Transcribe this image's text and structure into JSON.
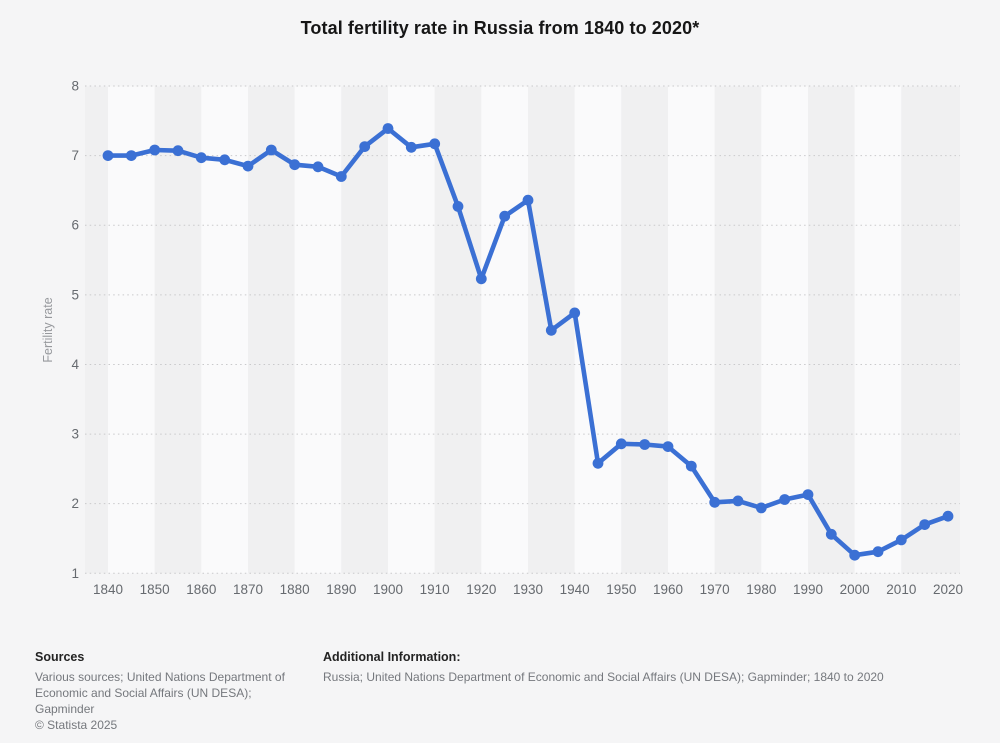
{
  "title": "Total fertility rate in Russia from 1840 to 2020*",
  "chart_data": {
    "type": "line",
    "title": "Total fertility rate in Russia from 1840 to 2020*",
    "ylabel": "Fertility rate",
    "xlabel": "",
    "legend": "none",
    "grid": "horizontal-dotted",
    "ylim": [
      1,
      8
    ],
    "y_ticks": [
      8,
      7,
      6,
      5,
      4,
      3,
      2,
      1
    ],
    "x_tick_labels": [
      "1840",
      "1850",
      "1860",
      "1870",
      "1880",
      "1890",
      "1900",
      "1910",
      "1920",
      "1930",
      "1940",
      "1950",
      "1960",
      "1970",
      "1980",
      "1990",
      "2000",
      "2010",
      "2020"
    ],
    "series": [
      {
        "name": "Fertility rate",
        "x": [
          1840,
          1845,
          1850,
          1855,
          1860,
          1865,
          1870,
          1875,
          1880,
          1885,
          1890,
          1895,
          1900,
          1905,
          1910,
          1915,
          1920,
          1925,
          1930,
          1935,
          1940,
          1945,
          1950,
          1955,
          1960,
          1965,
          1970,
          1975,
          1980,
          1985,
          1990,
          1995,
          2000,
          2005,
          2010,
          2015,
          2020
        ],
        "values": [
          7.0,
          7.0,
          7.08,
          7.07,
          6.97,
          6.94,
          6.85,
          7.08,
          6.87,
          6.84,
          6.7,
          7.13,
          7.39,
          7.12,
          7.17,
          6.27,
          5.23,
          6.13,
          6.36,
          4.49,
          4.74,
          2.58,
          2.86,
          2.85,
          2.82,
          2.54,
          2.02,
          2.04,
          1.94,
          2.06,
          2.13,
          1.56,
          1.26,
          1.31,
          1.48,
          1.7,
          1.82
        ]
      }
    ]
  },
  "colors": {
    "line": "#3b70d4",
    "band_light": "#fafafb",
    "band_dark": "#f0f0f1",
    "gridline": "#c9c9cb",
    "tick_label": "#666a6f",
    "axis_title": "#97999d",
    "background": "#f5f5f6"
  },
  "footer": {
    "sources_label": "Sources",
    "sources_lines": [
      "Various sources; United Nations Department of",
      "Economic and Social Affairs (UN DESA);",
      "Gapminder"
    ],
    "copyright": "© Statista 2025",
    "additional_label": "Additional Information:",
    "additional_text": "Russia; United Nations Department of Economic and Social Affairs (UN DESA); Gapminder; 1840 to 2020"
  }
}
